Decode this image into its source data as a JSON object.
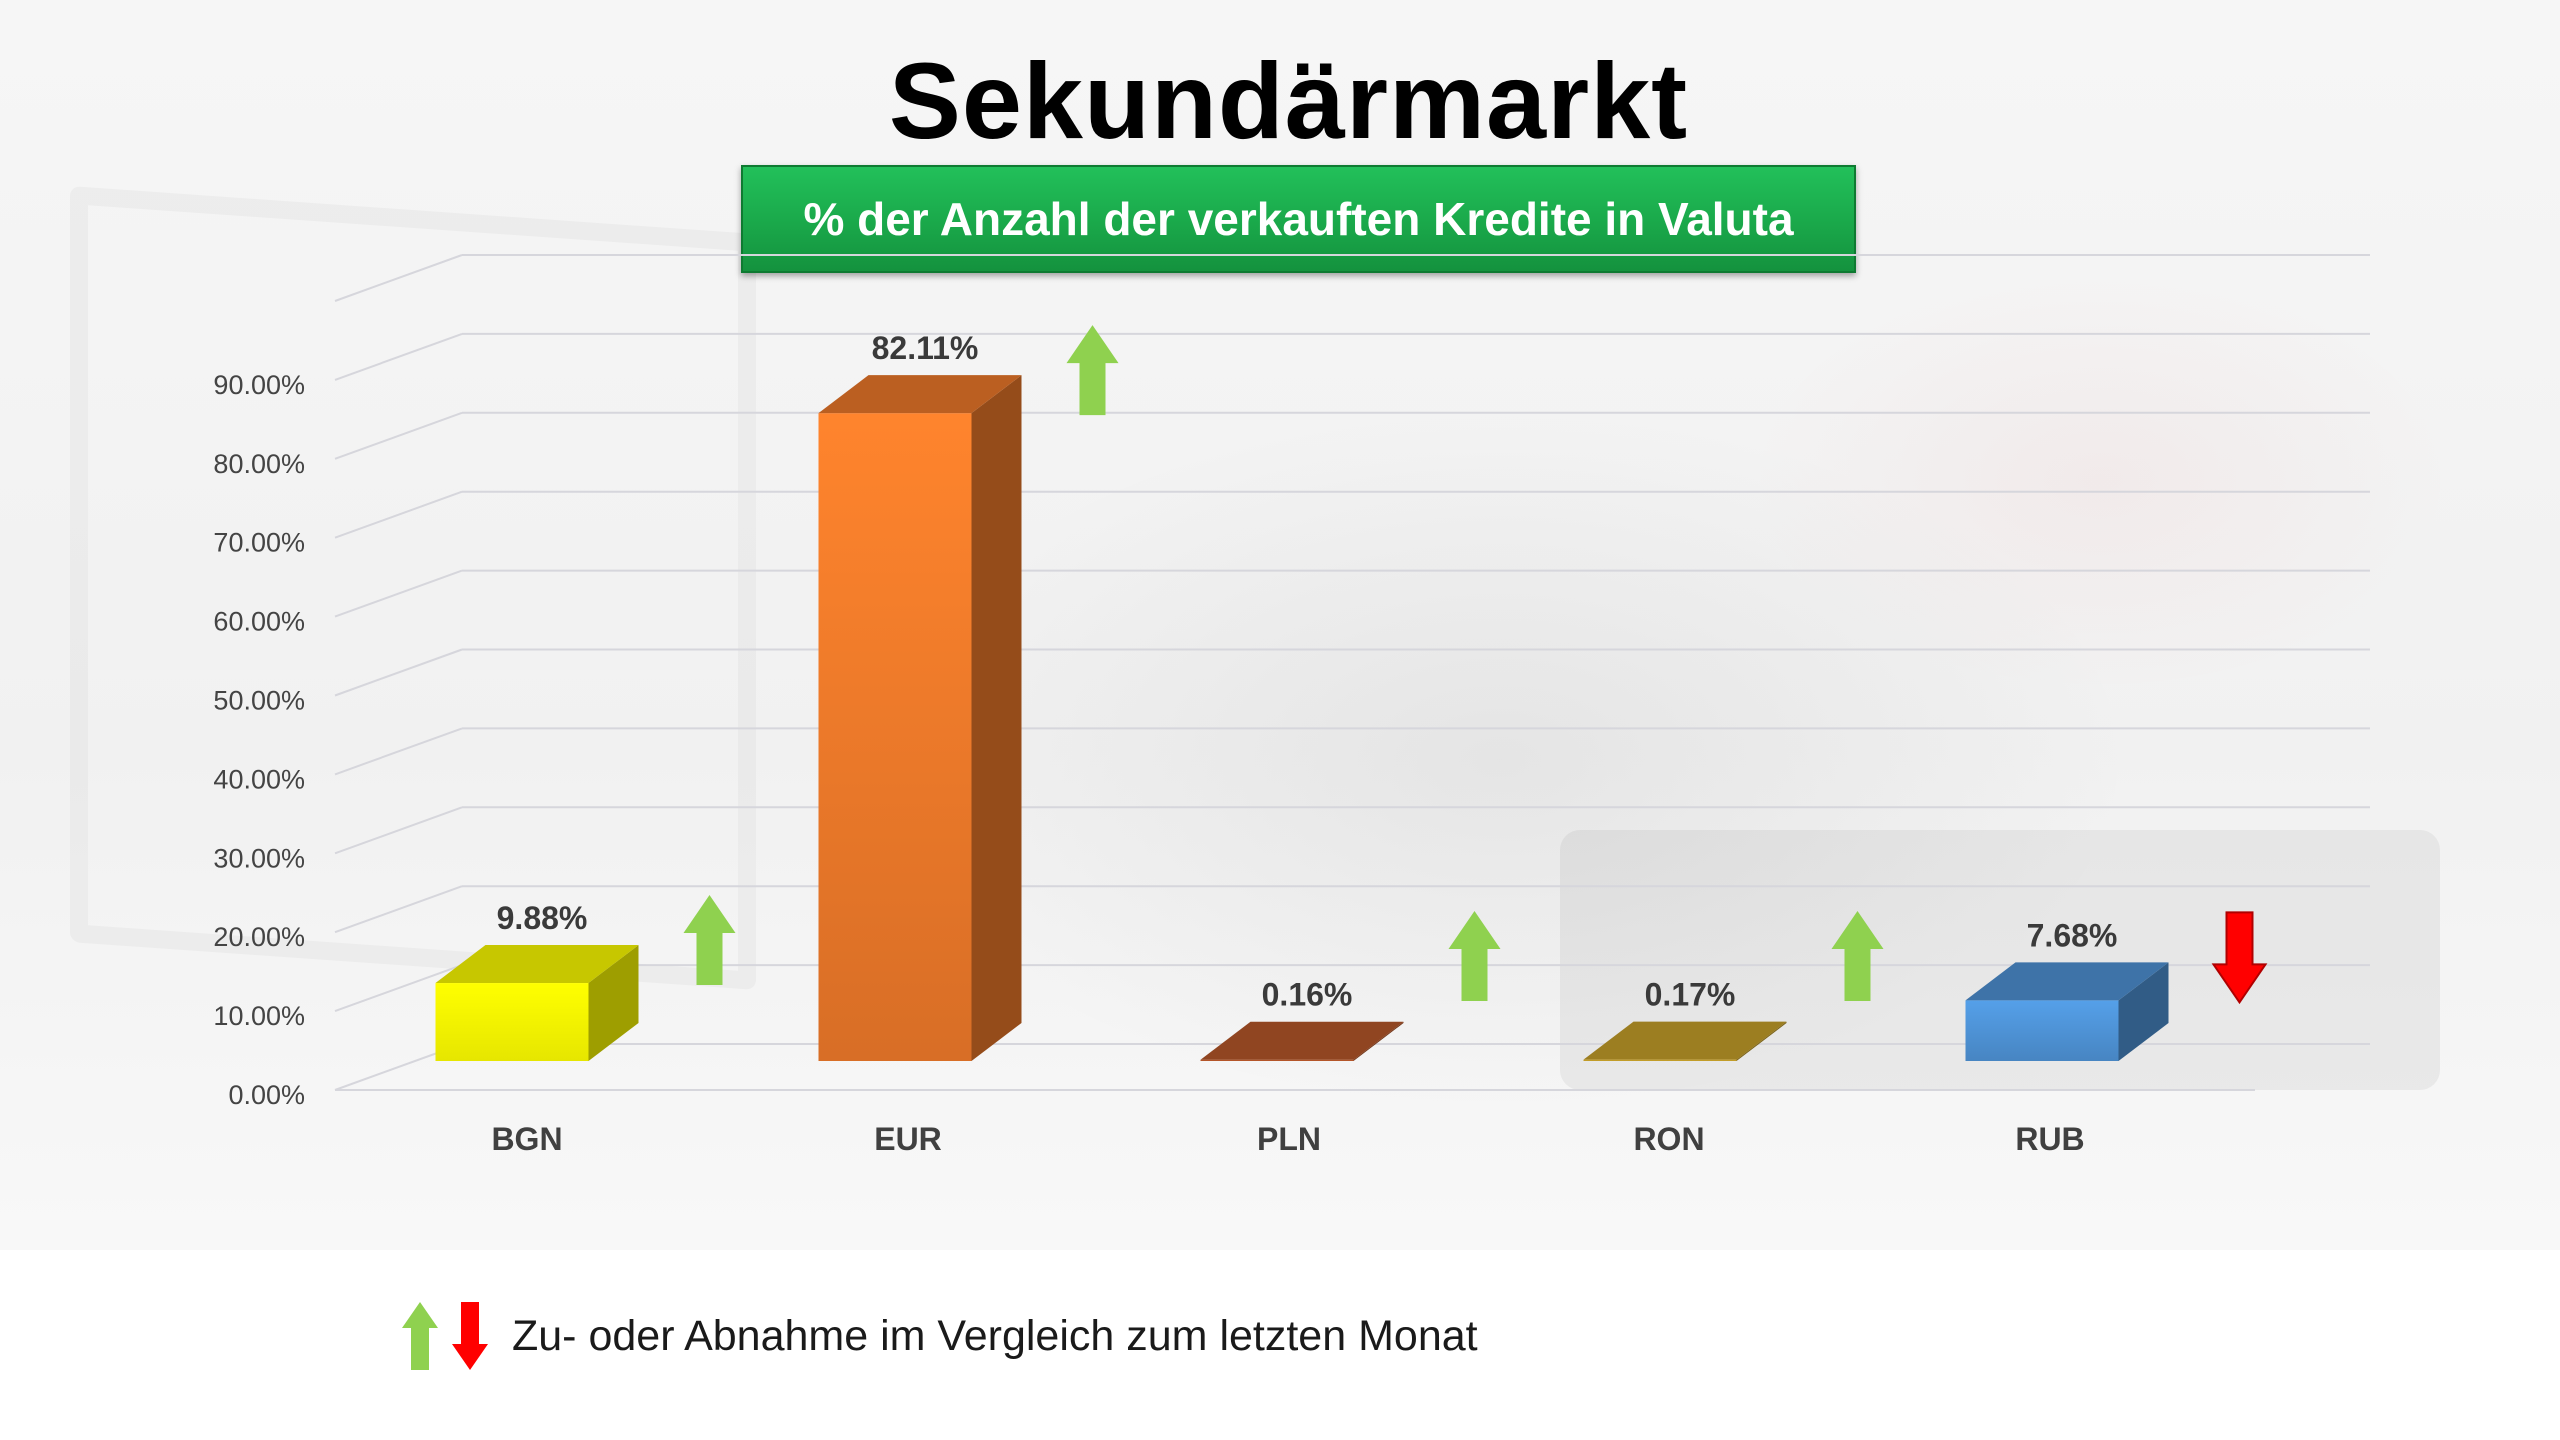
{
  "title": "Sekundärmarkt",
  "subtitle": "% der Anzahl der verkauften Kredite in Valuta",
  "chart_data": {
    "type": "bar",
    "categories": [
      "BGN",
      "EUR",
      "PLN",
      "RON",
      "RUB"
    ],
    "values": [
      9.88,
      82.11,
      0.16,
      0.17,
      7.68
    ],
    "value_labels": [
      "9.88%",
      "82.11%",
      "0.16%",
      "0.17%",
      "7.68%"
    ],
    "trend": [
      "up",
      "up",
      "up",
      "up",
      "down"
    ],
    "y_ticks": [
      "0.00%",
      "10.00%",
      "20.00%",
      "30.00%",
      "40.00%",
      "50.00%",
      "60.00%",
      "70.00%",
      "80.00%",
      "90.00%"
    ],
    "ylim": [
      0,
      100
    ],
    "grid": true,
    "three_d": true,
    "colors": [
      "#ffff00",
      "#f07a2a",
      "#b9582a",
      "#c8a22a",
      "#4f94d8"
    ],
    "arrow_colors": {
      "up": "#8fd14f",
      "down": "#ff0000"
    }
  },
  "legend": {
    "label": "Zu- oder Abnahme im Vergleich zum letzten Monat",
    "icons": [
      "arrow-up-icon",
      "arrow-down-icon"
    ]
  }
}
